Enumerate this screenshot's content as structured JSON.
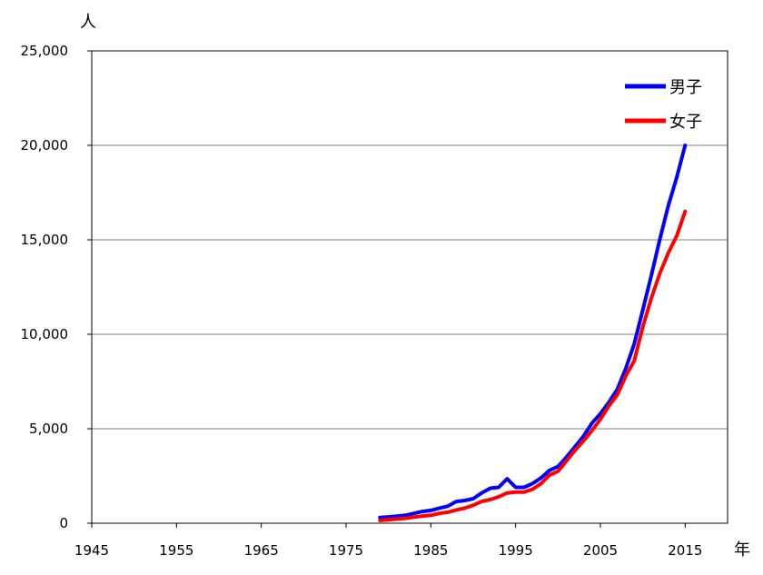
{
  "chart_data": {
    "type": "line",
    "ylabel": "人",
    "xlabel": "年",
    "xlim": [
      1945,
      2020
    ],
    "ylim": [
      0,
      25000
    ],
    "xticks": [
      1945,
      1955,
      1965,
      1975,
      1985,
      1995,
      2005,
      2015
    ],
    "yticks": [
      0,
      5000,
      10000,
      15000,
      20000,
      25000
    ],
    "ytick_labels": [
      "0",
      "5,000",
      "10,000",
      "15,000",
      "20,000",
      "25,000"
    ],
    "grid": true,
    "legend_position": "top-right",
    "series": [
      {
        "name": "男子",
        "color": "#0000ff",
        "x": [
          1979,
          1980,
          1981,
          1982,
          1983,
          1984,
          1985,
          1986,
          1987,
          1988,
          1989,
          1990,
          1991,
          1992,
          1993,
          1994,
          1995,
          1996,
          1997,
          1998,
          1999,
          2000,
          2001,
          2002,
          2003,
          2004,
          2005,
          2006,
          2007,
          2008,
          2009,
          2010,
          2011,
          2012,
          2013,
          2014,
          2015
        ],
        "y": [
          300,
          330,
          370,
          420,
          520,
          620,
          680,
          800,
          900,
          1150,
          1200,
          1300,
          1600,
          1850,
          1900,
          2350,
          1900,
          1900,
          2100,
          2400,
          2800,
          3000,
          3500,
          4050,
          4600,
          5300,
          5800,
          6400,
          7100,
          8200,
          9500,
          11300,
          13100,
          15000,
          16800,
          18300,
          20000
        ]
      },
      {
        "name": "女子",
        "color": "#ff0000",
        "x": [
          1979,
          1980,
          1981,
          1982,
          1983,
          1984,
          1985,
          1986,
          1987,
          1988,
          1989,
          1990,
          1991,
          1992,
          1993,
          1994,
          1995,
          1996,
          1997,
          1998,
          1999,
          2000,
          2001,
          2002,
          2003,
          2004,
          2005,
          2006,
          2007,
          2008,
          2009,
          2010,
          2011,
          2012,
          2013,
          2014,
          2015
        ],
        "y": [
          150,
          180,
          220,
          260,
          320,
          380,
          420,
          520,
          580,
          700,
          800,
          950,
          1150,
          1250,
          1400,
          1600,
          1650,
          1650,
          1800,
          2100,
          2550,
          2750,
          3300,
          3850,
          4350,
          4900,
          5500,
          6200,
          6800,
          7800,
          8600,
          10400,
          11900,
          13200,
          14300,
          15200,
          16500
        ]
      }
    ]
  }
}
